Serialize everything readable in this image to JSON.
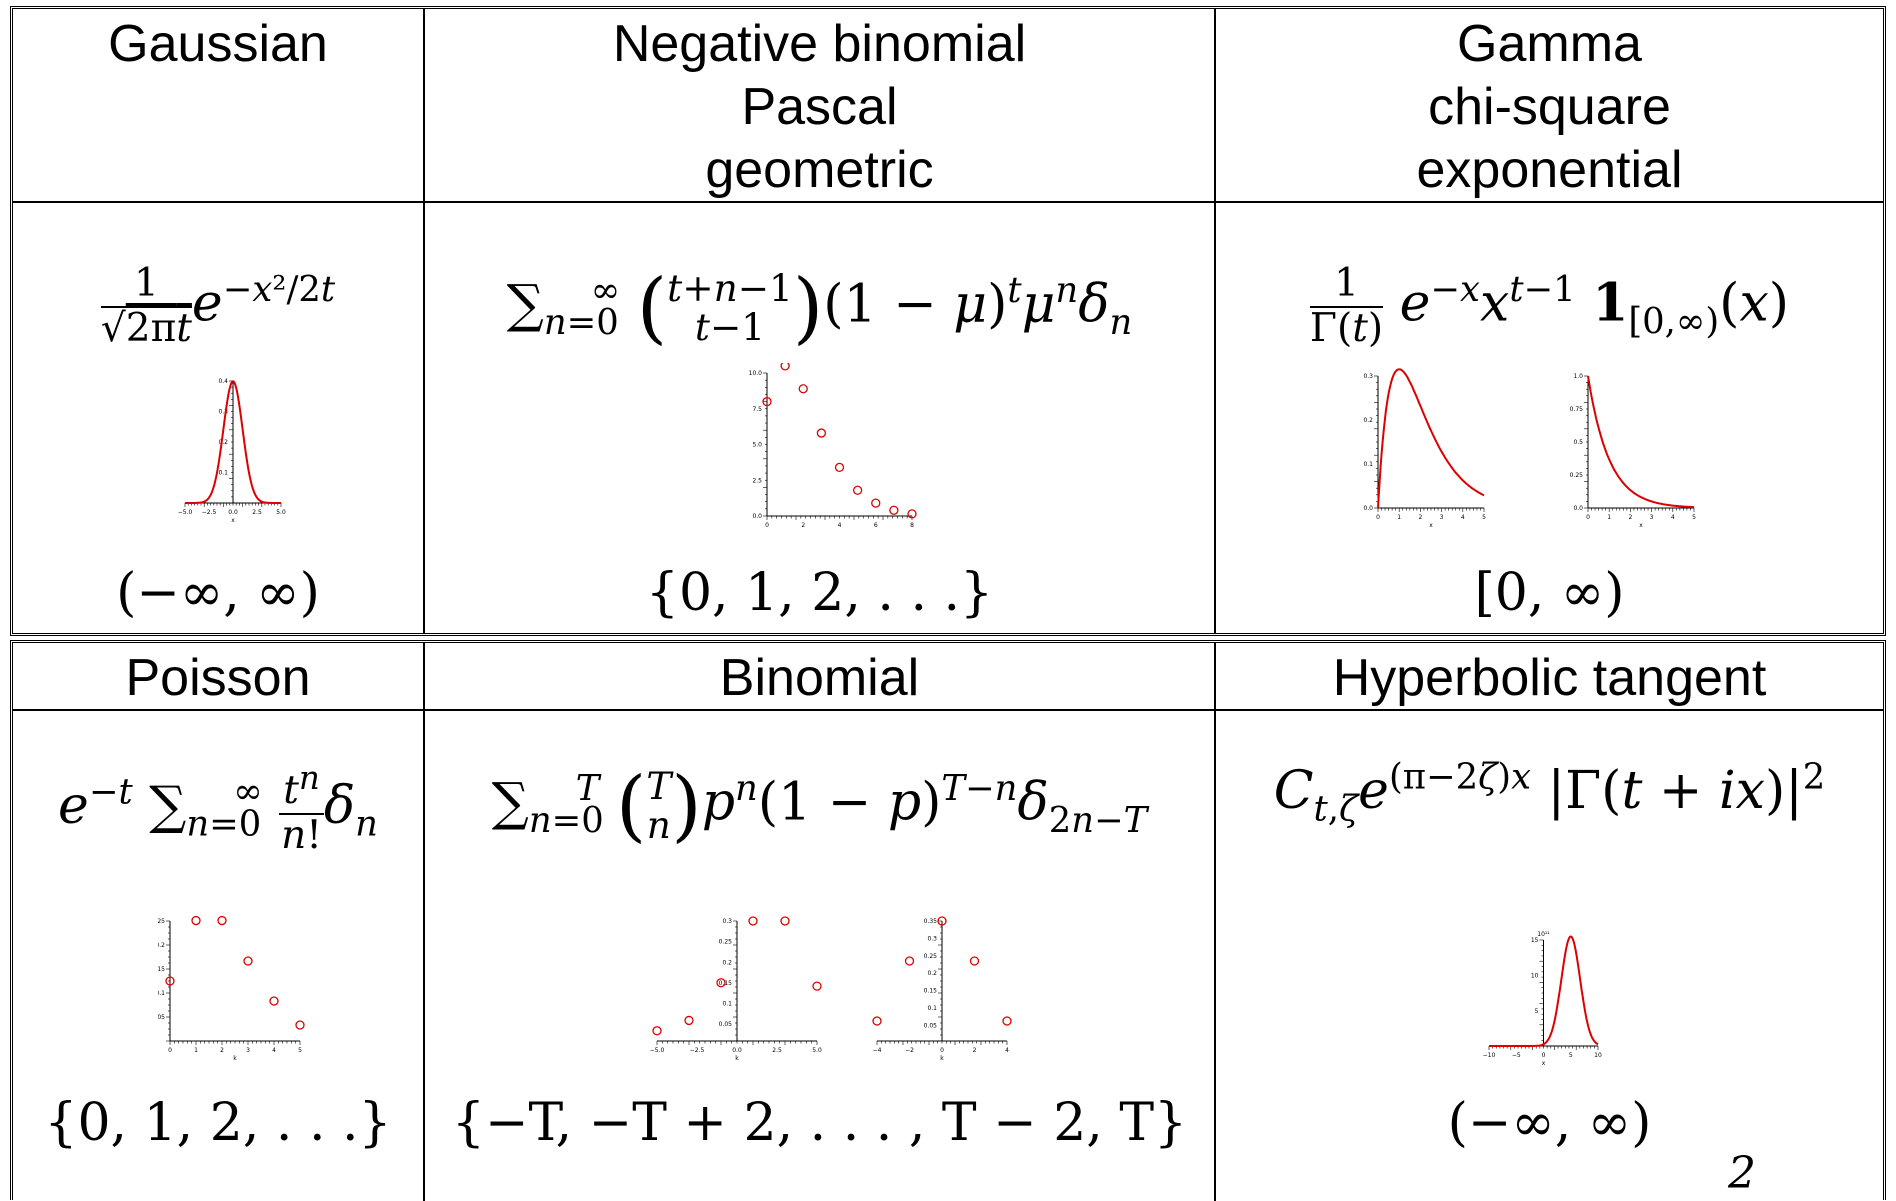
{
  "table1": {
    "headers": {
      "gaussian": "Gaussian",
      "negbin": [
        "Negative binomial",
        "Pascal",
        "geometric"
      ],
      "gamma": [
        "Gamma",
        "chi-square",
        "exponential"
      ]
    },
    "supports": {
      "gaussian": "(−∞, ∞)",
      "negbin": "{0, 1, 2, . . .}",
      "gamma": "[0, ∞)"
    }
  },
  "table2": {
    "headers": {
      "poisson": "Poisson",
      "binomial": "Binomial",
      "tanh": "Hyperbolic tangent"
    },
    "supports": {
      "poisson": "{0, 1, 2, . . .}",
      "binomial": "{−T, −T + 2, . . . , T − 2, T}",
      "tanh": "(−∞, ∞)"
    }
  },
  "page_number": "2",
  "colors": {
    "curve": "#dd0000",
    "line": "#000000"
  },
  "chart_data": [
    {
      "id": "gaussian",
      "type": "line",
      "xlabel": "x",
      "xlim": [
        -5,
        5
      ],
      "ylim": [
        0,
        0.4
      ],
      "xticks": [
        "−5.0",
        "−2.5",
        "0.0",
        "2.5",
        "5.0"
      ],
      "yticks": [
        "0.1",
        "0.2",
        "0.3",
        "0.4"
      ]
    },
    {
      "id": "negbin",
      "type": "scatter",
      "xlabel": "",
      "xlim": [
        0,
        8
      ],
      "ylim": [
        0,
        10
      ],
      "x": [
        0,
        1,
        2,
        3,
        4,
        5,
        6,
        7,
        8
      ],
      "y": [
        8.0,
        10.5,
        8.9,
        5.8,
        3.4,
        1.8,
        0.9,
        0.4,
        0.15
      ],
      "xticks": [
        "0",
        "2",
        "4",
        "6",
        "8"
      ],
      "yticks": [
        "0.0",
        "2.5",
        "5.0",
        "7.5",
        "10.0"
      ]
    },
    {
      "id": "gamma",
      "type": "line",
      "xlabel": "x",
      "xlim": [
        0,
        5
      ],
      "ylim": [
        0,
        0.35
      ],
      "xticks": [
        "0",
        "1",
        "2",
        "3",
        "4",
        "5"
      ],
      "yticks": [
        "0.0",
        "0.1",
        "0.2",
        "0.3"
      ]
    },
    {
      "id": "exponential",
      "type": "line",
      "xlabel": "x",
      "xlim": [
        0,
        5
      ],
      "ylim": [
        0,
        1.0
      ],
      "xticks": [
        "0",
        "1",
        "2",
        "3",
        "4",
        "5"
      ],
      "yticks": [
        "0.0",
        "0.25",
        "0.5",
        "0.75",
        "1.0"
      ]
    },
    {
      "id": "poisson",
      "type": "scatter",
      "xlabel": "k",
      "xlim": [
        0,
        5
      ],
      "ylim": [
        0,
        0.27
      ],
      "x": [
        0,
        1,
        2,
        3,
        4,
        5
      ],
      "y": [
        0.135,
        0.271,
        0.271,
        0.18,
        0.09,
        0.036
      ],
      "xticks": [
        "0",
        "1",
        "2",
        "3",
        "4",
        "5"
      ],
      "yticks": [
        "0.05",
        "0.1",
        "0.15",
        "0.2",
        "0.25"
      ]
    },
    {
      "id": "binomial1",
      "type": "scatter",
      "xlabel": "k",
      "xlim": [
        -5,
        5
      ],
      "ylim": [
        0,
        0.35
      ],
      "x": [
        -5,
        -3,
        -1,
        1,
        3,
        5
      ],
      "y": [
        0.03,
        0.06,
        0.17,
        0.35,
        0.35,
        0.16
      ],
      "xticks": [
        "−5.0",
        "−2.5",
        "0.0",
        "2.5",
        "5.0"
      ],
      "yticks": [
        "0.05",
        "0.1",
        "0.15",
        "0.2",
        "0.25",
        "0.3"
      ]
    },
    {
      "id": "binomial2",
      "type": "scatter",
      "xlabel": "k",
      "xlim": [
        -4,
        4
      ],
      "ylim": [
        0,
        0.375
      ],
      "x": [
        -4,
        -2,
        0,
        2,
        4
      ],
      "y": [
        0.0625,
        0.25,
        0.375,
        0.25,
        0.0625
      ],
      "xticks": [
        "−4",
        "−2",
        "0",
        "2",
        "4"
      ],
      "yticks": [
        "0.05",
        "0.1",
        "0.15",
        "0.2",
        "0.25",
        "0.3",
        "0.35"
      ]
    },
    {
      "id": "tanh",
      "type": "line",
      "xlabel": "x",
      "xlim": [
        -10,
        10
      ],
      "ylim": [
        0,
        15
      ],
      "xticks": [
        "−10",
        "−5",
        "0",
        "5",
        "10"
      ],
      "yticks": [
        "5",
        "10",
        "15"
      ],
      "yscale_label": "10¹¹"
    }
  ]
}
